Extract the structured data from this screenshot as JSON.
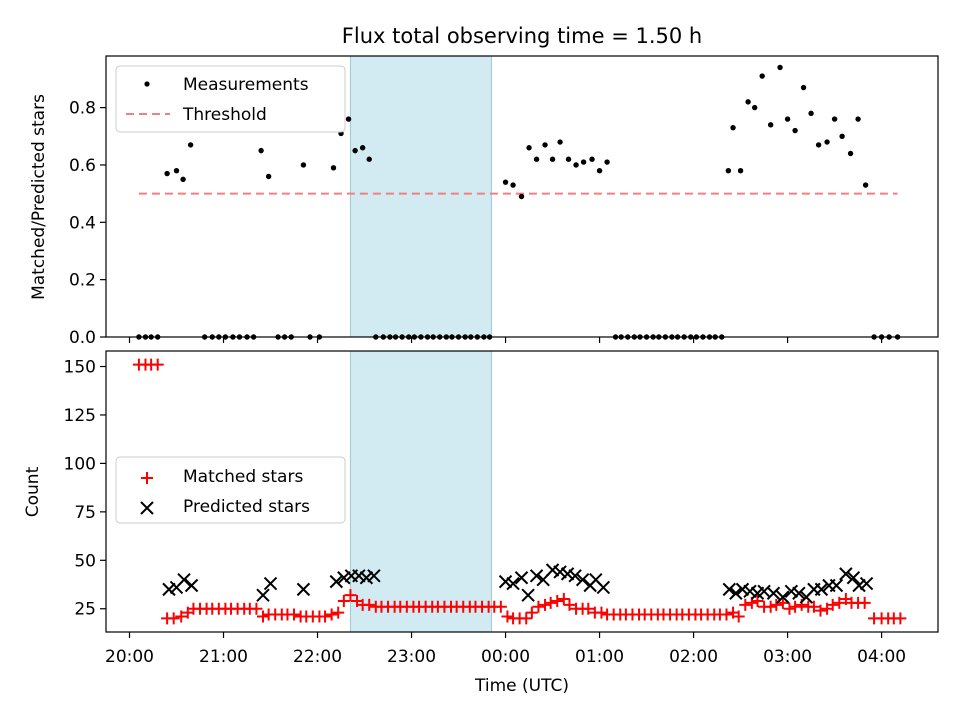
{
  "chart_data": [
    {
      "type": "scatter",
      "title": "Flux total observing time = 1.50 h",
      "xlabel": "",
      "ylabel": "Matched/Predicted stars",
      "ylim": [
        0,
        0.98
      ],
      "yticks": [
        "0.0",
        "0.2",
        "0.4",
        "0.6",
        "0.8"
      ],
      "legend": [
        "Measurements",
        "Threshold"
      ],
      "legend_position": "upper-left",
      "highlight_span": [
        2.35,
        3.85
      ],
      "series": [
        {
          "name": "Measurements",
          "marker": "dot",
          "color": "#000000",
          "points": [
            [
              0.1,
              0
            ],
            [
              0.17,
              0
            ],
            [
              0.23,
              0
            ],
            [
              0.3,
              0
            ],
            [
              0.4,
              0.57
            ],
            [
              0.5,
              0.58
            ],
            [
              0.57,
              0.55
            ],
            [
              0.65,
              0.67
            ],
            [
              0.8,
              0
            ],
            [
              0.88,
              0
            ],
            [
              0.95,
              0
            ],
            [
              1.02,
              0
            ],
            [
              1.1,
              0
            ],
            [
              1.17,
              0
            ],
            [
              1.25,
              0
            ],
            [
              1.32,
              0
            ],
            [
              1.4,
              0.65
            ],
            [
              1.48,
              0.56
            ],
            [
              1.58,
              0
            ],
            [
              1.65,
              0
            ],
            [
              1.72,
              0
            ],
            [
              1.85,
              0.6
            ],
            [
              1.92,
              0
            ],
            [
              2.02,
              0
            ],
            [
              2.17,
              0.59
            ],
            [
              2.25,
              0.71
            ],
            [
              2.33,
              0.76
            ],
            [
              2.4,
              0.65
            ],
            [
              2.48,
              0.66
            ],
            [
              2.55,
              0.62
            ],
            [
              2.62,
              0
            ],
            [
              2.7,
              0
            ],
            [
              2.77,
              0
            ],
            [
              2.83,
              0
            ],
            [
              2.9,
              0
            ],
            [
              2.97,
              0
            ],
            [
              3.03,
              0
            ],
            [
              3.1,
              0
            ],
            [
              3.17,
              0
            ],
            [
              3.23,
              0
            ],
            [
              3.3,
              0
            ],
            [
              3.37,
              0
            ],
            [
              3.43,
              0
            ],
            [
              3.5,
              0
            ],
            [
              3.57,
              0
            ],
            [
              3.63,
              0
            ],
            [
              3.7,
              0
            ],
            [
              3.77,
              0
            ],
            [
              3.83,
              0
            ],
            [
              4.0,
              0.54
            ],
            [
              4.08,
              0.53
            ],
            [
              4.17,
              0.49
            ],
            [
              4.25,
              0.66
            ],
            [
              4.33,
              0.62
            ],
            [
              4.42,
              0.67
            ],
            [
              4.5,
              0.62
            ],
            [
              4.58,
              0.68
            ],
            [
              4.67,
              0.62
            ],
            [
              4.75,
              0.6
            ],
            [
              4.83,
              0.61
            ],
            [
              4.92,
              0.62
            ],
            [
              5.0,
              0.58
            ],
            [
              5.08,
              0.61
            ],
            [
              5.17,
              0
            ],
            [
              5.23,
              0
            ],
            [
              5.3,
              0
            ],
            [
              5.37,
              0
            ],
            [
              5.43,
              0
            ],
            [
              5.5,
              0
            ],
            [
              5.57,
              0
            ],
            [
              5.63,
              0
            ],
            [
              5.7,
              0
            ],
            [
              5.77,
              0
            ],
            [
              5.83,
              0
            ],
            [
              5.9,
              0
            ],
            [
              5.97,
              0
            ],
            [
              6.03,
              0
            ],
            [
              6.1,
              0
            ],
            [
              6.17,
              0
            ],
            [
              6.23,
              0
            ],
            [
              6.3,
              0
            ],
            [
              6.37,
              0.58
            ],
            [
              6.42,
              0.73
            ],
            [
              6.5,
              0.58
            ],
            [
              6.58,
              0.82
            ],
            [
              6.65,
              0.8
            ],
            [
              6.73,
              0.91
            ],
            [
              6.82,
              0.74
            ],
            [
              6.92,
              0.94
            ],
            [
              7.0,
              0.76
            ],
            [
              7.08,
              0.72
            ],
            [
              7.17,
              0.87
            ],
            [
              7.25,
              0.78
            ],
            [
              7.33,
              0.67
            ],
            [
              7.42,
              0.68
            ],
            [
              7.5,
              0.76
            ],
            [
              7.58,
              0.7
            ],
            [
              7.67,
              0.64
            ],
            [
              7.75,
              0.76
            ],
            [
              7.83,
              0.53
            ],
            [
              7.92,
              0
            ],
            [
              8.0,
              0
            ],
            [
              8.08,
              0
            ],
            [
              8.17,
              0
            ]
          ]
        },
        {
          "name": "Threshold",
          "style": "dashed",
          "color": "#f08080",
          "points": [
            [
              0.1,
              0.5
            ],
            [
              8.17,
              0.5
            ]
          ]
        }
      ]
    },
    {
      "type": "scatter",
      "title": "",
      "xlabel": "Time (UTC)",
      "ylabel": "Count",
      "ylim": [
        13,
        158
      ],
      "yticks": [
        "25",
        "50",
        "75",
        "100",
        "125",
        "150"
      ],
      "xticks": [
        "20:00",
        "21:00",
        "22:00",
        "23:00",
        "00:00",
        "01:00",
        "02:00",
        "03:00",
        "04:00"
      ],
      "xlim": [
        -0.25,
        8.6
      ],
      "legend": [
        "Matched stars",
        "Predicted stars"
      ],
      "legend_position": "center-left",
      "highlight_span": [
        2.35,
        3.85
      ],
      "series": [
        {
          "name": "Matched stars",
          "marker": "plus",
          "color": "#ff0000",
          "points": [
            [
              0.1,
              151
            ],
            [
              0.17,
              151
            ],
            [
              0.23,
              151
            ],
            [
              0.3,
              151
            ],
            [
              0.4,
              20
            ],
            [
              0.47,
              20
            ],
            [
              0.55,
              21
            ],
            [
              0.62,
              23
            ],
            [
              0.68,
              25
            ],
            [
              0.75,
              25
            ],
            [
              0.82,
              25
            ],
            [
              0.88,
              25
            ],
            [
              0.95,
              25
            ],
            [
              1.02,
              25
            ],
            [
              1.08,
              25
            ],
            [
              1.15,
              25
            ],
            [
              1.22,
              25
            ],
            [
              1.28,
              25
            ],
            [
              1.35,
              25
            ],
            [
              1.42,
              21
            ],
            [
              1.48,
              22
            ],
            [
              1.55,
              22
            ],
            [
              1.62,
              22
            ],
            [
              1.68,
              22
            ],
            [
              1.75,
              22
            ],
            [
              1.82,
              21
            ],
            [
              1.88,
              21
            ],
            [
              1.95,
              21
            ],
            [
              2.02,
              21
            ],
            [
              2.08,
              21
            ],
            [
              2.15,
              22
            ],
            [
              2.22,
              23
            ],
            [
              2.28,
              29
            ],
            [
              2.35,
              32
            ],
            [
              2.42,
              29
            ],
            [
              2.48,
              27
            ],
            [
              2.55,
              27
            ],
            [
              2.62,
              26
            ],
            [
              2.68,
              26
            ],
            [
              2.75,
              26
            ],
            [
              2.82,
              26
            ],
            [
              2.88,
              26
            ],
            [
              2.95,
              26
            ],
            [
              3.02,
              26
            ],
            [
              3.08,
              26
            ],
            [
              3.15,
              26
            ],
            [
              3.22,
              26
            ],
            [
              3.28,
              26
            ],
            [
              3.35,
              26
            ],
            [
              3.42,
              26
            ],
            [
              3.48,
              26
            ],
            [
              3.55,
              26
            ],
            [
              3.62,
              26
            ],
            [
              3.68,
              26
            ],
            [
              3.75,
              26
            ],
            [
              3.82,
              26
            ],
            [
              3.88,
              26
            ],
            [
              3.95,
              26
            ],
            [
              4.02,
              21
            ],
            [
              4.08,
              20
            ],
            [
              4.15,
              20
            ],
            [
              4.22,
              20
            ],
            [
              4.28,
              23
            ],
            [
              4.35,
              26
            ],
            [
              4.42,
              27
            ],
            [
              4.48,
              28
            ],
            [
              4.55,
              29
            ],
            [
              4.62,
              30
            ],
            [
              4.68,
              27
            ],
            [
              4.75,
              25
            ],
            [
              4.82,
              25
            ],
            [
              4.88,
              25
            ],
            [
              4.95,
              23
            ],
            [
              5.02,
              23
            ],
            [
              5.08,
              22
            ],
            [
              5.15,
              22
            ],
            [
              5.22,
              22
            ],
            [
              5.28,
              22
            ],
            [
              5.35,
              22
            ],
            [
              5.42,
              22
            ],
            [
              5.48,
              22
            ],
            [
              5.55,
              22
            ],
            [
              5.62,
              22
            ],
            [
              5.68,
              22
            ],
            [
              5.75,
              22
            ],
            [
              5.82,
              22
            ],
            [
              5.88,
              22
            ],
            [
              5.95,
              22
            ],
            [
              6.02,
              22
            ],
            [
              6.08,
              22
            ],
            [
              6.15,
              22
            ],
            [
              6.22,
              22
            ],
            [
              6.28,
              22
            ],
            [
              6.35,
              22
            ],
            [
              6.42,
              23
            ],
            [
              6.48,
              21
            ],
            [
              6.55,
              27
            ],
            [
              6.62,
              28
            ],
            [
              6.68,
              29
            ],
            [
              6.75,
              26
            ],
            [
              6.82,
              26
            ],
            [
              6.88,
              27
            ],
            [
              6.95,
              28
            ],
            [
              7.02,
              25
            ],
            [
              7.08,
              26
            ],
            [
              7.15,
              27
            ],
            [
              7.22,
              26
            ],
            [
              7.28,
              26
            ],
            [
              7.35,
              24
            ],
            [
              7.42,
              25
            ],
            [
              7.48,
              27
            ],
            [
              7.55,
              28
            ],
            [
              7.62,
              30
            ],
            [
              7.68,
              28
            ],
            [
              7.75,
              28
            ],
            [
              7.82,
              28
            ],
            [
              7.92,
              20
            ],
            [
              8.0,
              20
            ],
            [
              8.07,
              20
            ],
            [
              8.13,
              20
            ],
            [
              8.2,
              20
            ]
          ]
        },
        {
          "name": "Predicted stars",
          "marker": "x",
          "color": "#000000",
          "points": [
            [
              0.42,
              35
            ],
            [
              0.5,
              36
            ],
            [
              0.58,
              40
            ],
            [
              0.66,
              37
            ],
            [
              1.42,
              32
            ],
            [
              1.5,
              38
            ],
            [
              1.85,
              35
            ],
            [
              2.2,
              39
            ],
            [
              2.28,
              41
            ],
            [
              2.36,
              42
            ],
            [
              2.44,
              42
            ],
            [
              2.52,
              41
            ],
            [
              2.6,
              42
            ],
            [
              4.0,
              39
            ],
            [
              4.08,
              38
            ],
            [
              4.17,
              41
            ],
            [
              4.24,
              32
            ],
            [
              4.33,
              42
            ],
            [
              4.4,
              40
            ],
            [
              4.5,
              45
            ],
            [
              4.58,
              44
            ],
            [
              4.66,
              43
            ],
            [
              4.74,
              42
            ],
            [
              4.82,
              40
            ],
            [
              4.9,
              37
            ],
            [
              4.96,
              40
            ],
            [
              5.04,
              36
            ],
            [
              6.38,
              35
            ],
            [
              6.45,
              33
            ],
            [
              6.52,
              35
            ],
            [
              6.6,
              34
            ],
            [
              6.68,
              33
            ],
            [
              6.75,
              34
            ],
            [
              6.85,
              33
            ],
            [
              6.95,
              31
            ],
            [
              7.04,
              34
            ],
            [
              7.12,
              33
            ],
            [
              7.2,
              31
            ],
            [
              7.28,
              35
            ],
            [
              7.36,
              35
            ],
            [
              7.44,
              37
            ],
            [
              7.52,
              37
            ],
            [
              7.62,
              43
            ],
            [
              7.7,
              41
            ],
            [
              7.76,
              37
            ],
            [
              7.84,
              38
            ]
          ]
        }
      ]
    }
  ]
}
